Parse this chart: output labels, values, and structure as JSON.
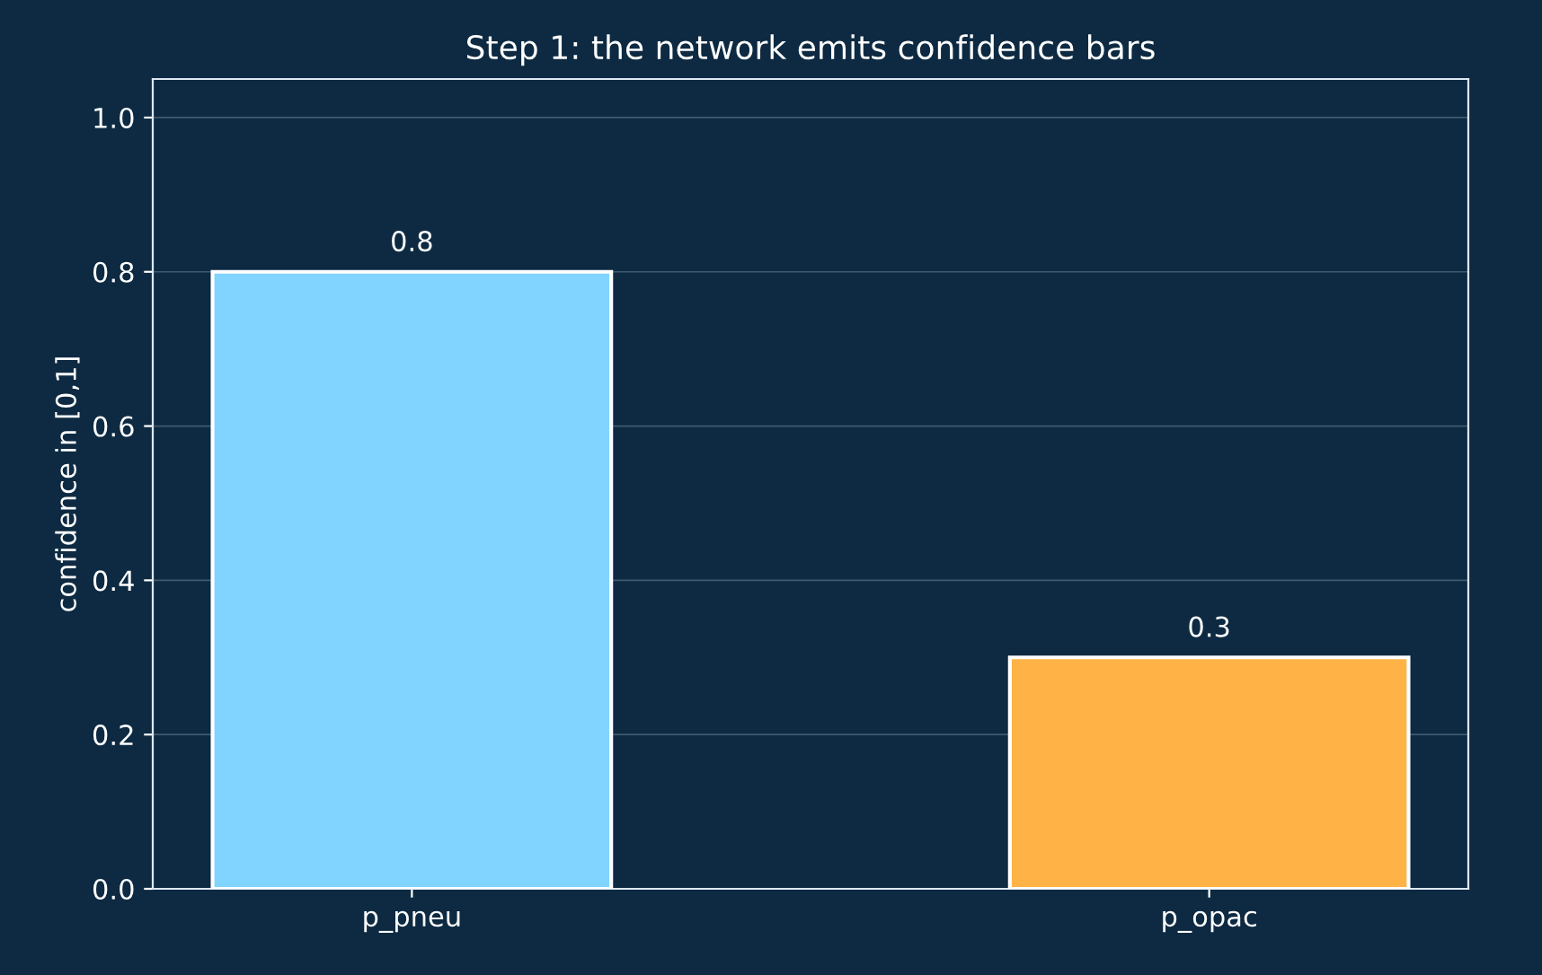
{
  "chart_data": {
    "type": "bar",
    "title": "Step 1: the network emits confidence bars",
    "ylabel": "confidence in [0,1]",
    "categories": [
      "p_pneu",
      "p_opac"
    ],
    "values": [
      0.8,
      0.3
    ],
    "colors": [
      "#80d4ff",
      "#ffb347"
    ],
    "ylim": [
      0,
      1.05
    ],
    "yticks": [
      {
        "value": 0,
        "label": "0.0"
      },
      0.2,
      0.4,
      0.6,
      0.8,
      {
        "value": 1,
        "label": "1.0"
      }
    ],
    "grid": "y",
    "data_labels": true
  }
}
